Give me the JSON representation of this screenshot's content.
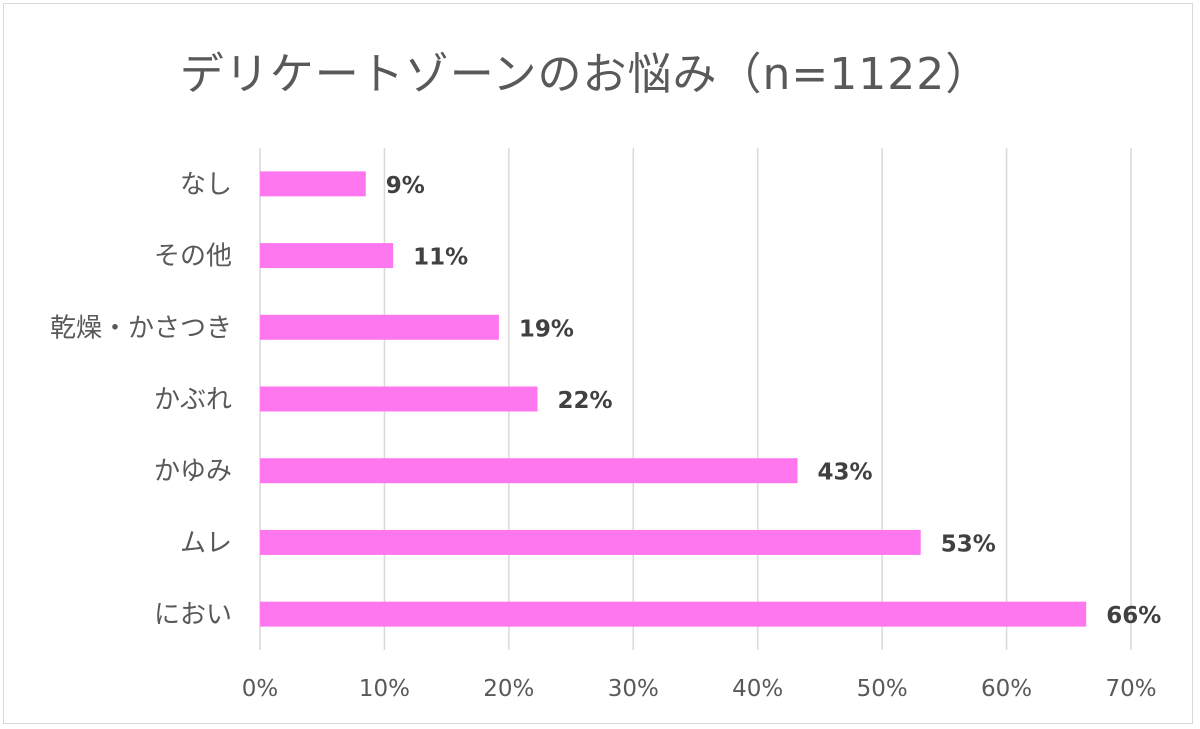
{
  "chart_data": {
    "type": "bar",
    "orientation": "horizontal",
    "title": "デリケートゾーンのお悩み（n=1122）",
    "categories": [
      "なし",
      "その他",
      "乾燥・かさつき",
      "かぶれ",
      "かゆみ",
      "ムレ",
      "におい"
    ],
    "values": [
      8.5,
      10.7,
      19.2,
      22.3,
      43.2,
      53.1,
      66.4
    ],
    "data_labels": [
      "9%",
      "11%",
      "19%",
      "22%",
      "43%",
      "53%",
      "66%"
    ],
    "xlim": [
      0,
      70
    ],
    "xticks": [
      0,
      10,
      20,
      30,
      40,
      50,
      60,
      70
    ],
    "xtick_labels": [
      "0%",
      "10%",
      "20%",
      "30%",
      "40%",
      "50%",
      "60%",
      "70%"
    ],
    "grid": "vertical",
    "legend": "none",
    "bar_color": "#ff77ee"
  }
}
